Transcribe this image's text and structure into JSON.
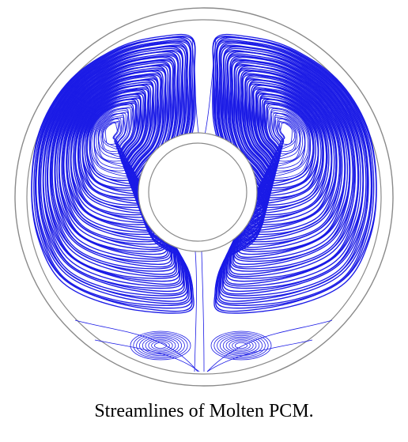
{
  "caption": "Streamlines of Molten PCM.",
  "colors": {
    "streamline": "#1a1ae6",
    "outline": "#7a7a7a",
    "background": "#ffffff"
  }
}
